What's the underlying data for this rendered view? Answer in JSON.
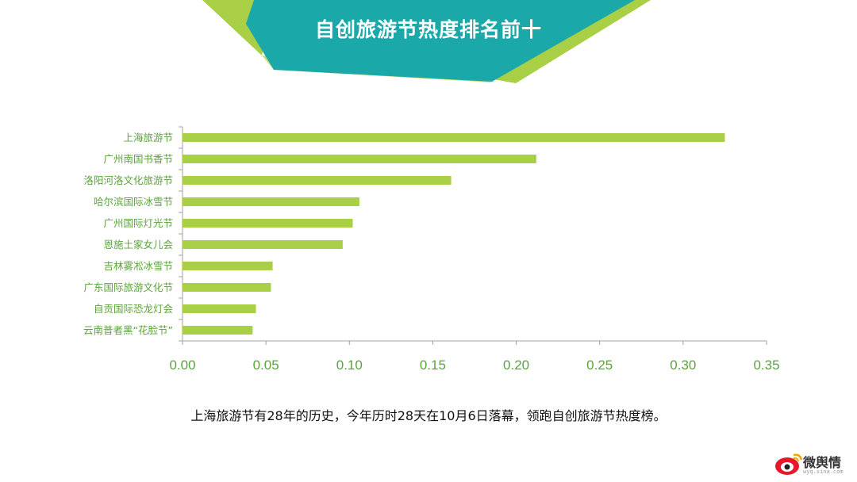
{
  "header": {
    "title": "自创旅游节热度排名前十",
    "colors": {
      "teal": "#1AA8A8",
      "lime": "#A8CF45",
      "lime_light": "#C4DE73"
    }
  },
  "chart_data": {
    "type": "bar",
    "orientation": "horizontal",
    "categories": [
      "上海旅游节",
      "广州南国书香节",
      "洛阳河洛文化旅游节",
      "哈尔滨国际冰雪节",
      "广州国际灯光节",
      "恩施土家女儿会",
      "吉林雾凇冰雪节",
      "广东国际旅游文化节",
      "自贡国际恐龙灯会",
      "云南普者黑“花脸节”"
    ],
    "values": [
      0.325,
      0.212,
      0.161,
      0.106,
      0.102,
      0.096,
      0.054,
      0.053,
      0.044,
      0.042
    ],
    "xlim": [
      0,
      0.35
    ],
    "xticks": [
      "0.00",
      "0.05",
      "0.10",
      "0.15",
      "0.20",
      "0.25",
      "0.30",
      "0.35"
    ],
    "bar_color": "#A8CF45",
    "tick_label_color": "#5BA33B",
    "grid": false
  },
  "caption": "上海旅游节有28年的历史，今年历时28天在10月6日落幕，领跑自创旅游节热度榜。",
  "watermark": {
    "text": "微舆情",
    "subtext": "wyq.sina.com",
    "icon": "sina-weibo-eye-icon"
  }
}
